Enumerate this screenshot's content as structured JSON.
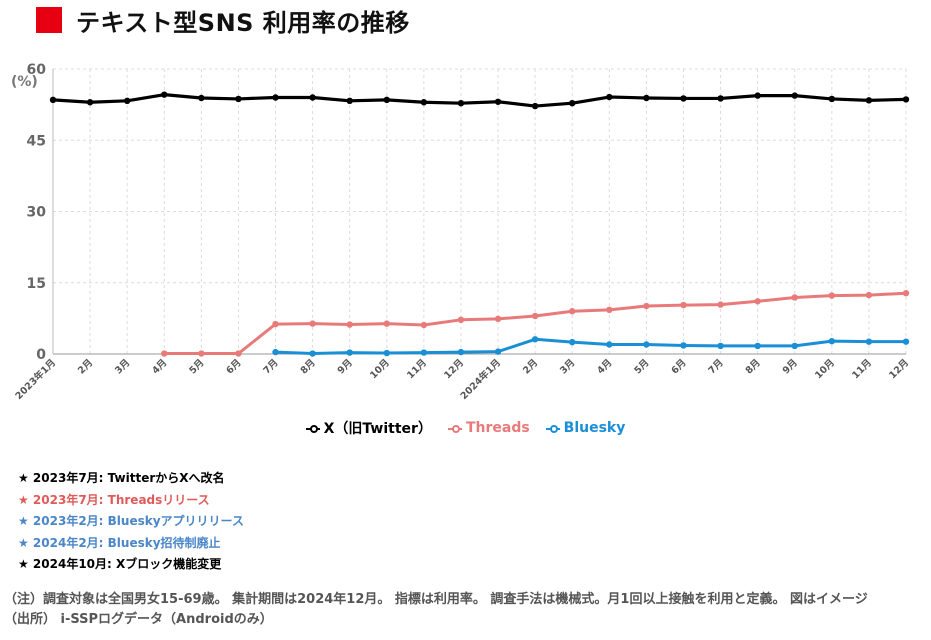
{
  "header": {
    "title": "テキスト型SNS 利用率の推移"
  },
  "colors": {
    "title_mark": "#e60012",
    "x": "#000000",
    "threads": "#e87a7a",
    "bluesky": "#1a8fd6",
    "note_blue": "#4a86c8"
  },
  "chart_data": {
    "type": "line",
    "unit_label": "(%)",
    "ylim": [
      0,
      60
    ],
    "yticks": [
      0,
      15,
      30,
      45,
      60
    ],
    "grid": true,
    "legend_position": "bottom",
    "x": [
      "2023年1月",
      "2月",
      "3月",
      "4月",
      "5月",
      "6月",
      "7月",
      "8月",
      "9月",
      "10月",
      "11月",
      "12月",
      "2024年1月",
      "2月",
      "3月",
      "4月",
      "5月",
      "6月",
      "7月",
      "8月",
      "9月",
      "10月",
      "11月",
      "12月"
    ],
    "series": [
      {
        "name": "X（旧Twitter）",
        "color": "#000000",
        "values": [
          53.5,
          53.0,
          53.3,
          54.6,
          53.9,
          53.7,
          54.0,
          54.0,
          53.3,
          53.5,
          53.0,
          52.8,
          53.1,
          52.2,
          52.8,
          54.1,
          53.9,
          53.8,
          53.8,
          54.4,
          54.4,
          53.7,
          53.4,
          53.6
        ]
      },
      {
        "name": "Threads",
        "color": "#e87a7a",
        "values": [
          null,
          null,
          null,
          0.1,
          0.1,
          0.1,
          6.3,
          6.4,
          6.2,
          6.4,
          6.1,
          7.2,
          7.4,
          8.0,
          9.0,
          9.3,
          10.1,
          10.3,
          10.4,
          11.1,
          11.9,
          12.3,
          12.4,
          12.8
        ]
      },
      {
        "name": "Bluesky",
        "color": "#1a8fd6",
        "values": [
          null,
          null,
          null,
          null,
          null,
          null,
          0.4,
          0.1,
          0.3,
          0.2,
          0.3,
          0.4,
          0.5,
          3.1,
          2.5,
          2.0,
          2.0,
          1.8,
          1.7,
          1.7,
          1.7,
          2.7,
          2.6,
          2.6
        ]
      }
    ]
  },
  "notes": [
    {
      "text": "★ 2023年7月: TwitterからXへ改名",
      "color": "#000000"
    },
    {
      "text": "★ 2023年7月: Threadsリリース",
      "color": "#e05a5a"
    },
    {
      "text": "★ 2023年2月: Blueskyアプリリリース",
      "color": "#4a86c8"
    },
    {
      "text": "★ 2024年2月: Bluesky招待制廃止",
      "color": "#4a86c8"
    },
    {
      "text": "★ 2024年10月: Xブロック機能変更",
      "color": "#000000"
    }
  ],
  "footer": {
    "line1": "（注）調査対象は全国男女15-69歳。 集計期間は2024年12月。 指標は利用率。 調査手法は機械式。月1回以上接触を利用と定義。 図はイメージ",
    "line2": "（出所） i-SSPログデータ（Androidのみ）"
  }
}
